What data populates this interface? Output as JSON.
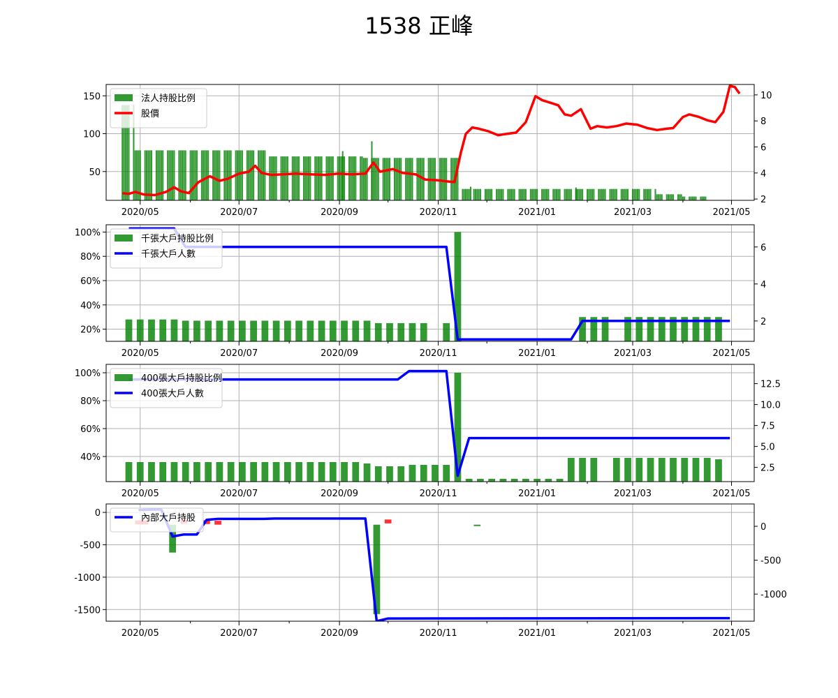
{
  "title": "1538 正峰",
  "colors": {
    "bar_green": "#008000",
    "bar_red": "#ff0000",
    "price_red": "#ff0000",
    "holders_blue": "#0000ff",
    "grid": "#b0b0b0"
  },
  "x_axis": {
    "start": "2020-04-10",
    "end": "2021-05-15",
    "ticks": [
      "2020-05-01",
      "2020-07-01",
      "2020-09-01",
      "2020-11-01",
      "2021-01-01",
      "2021-03-01",
      "2021-05-01"
    ],
    "tick_labels": [
      "2020/05",
      "2020/07",
      "2020/09",
      "2020/11",
      "2021/01",
      "2021/03",
      "2021/05"
    ]
  },
  "chart_data": [
    {
      "type": "bar",
      "id": "institutional",
      "legend": [
        "法人持股比例",
        "股價"
      ],
      "legend_position": "upper-left",
      "grid": true,
      "left_axis": {
        "ylim": [
          12,
          165
        ],
        "ticks": [
          50,
          100,
          150
        ],
        "tick_labels": [
          "50",
          "100",
          "150"
        ]
      },
      "right_axis": {
        "ylim": [
          1.9,
          10.8
        ],
        "ticks": [
          2,
          4,
          6,
          8,
          10
        ],
        "tick_labels": [
          "2",
          "4",
          "6",
          "8",
          "10"
        ]
      },
      "bar_series": {
        "name": "法人持股比例",
        "segments": [
          [
            "2020-04-20",
            "2020-04-27",
            138
          ],
          [
            "2020-04-28",
            "2020-06-30",
            78
          ],
          [
            "2020-07-01",
            "2020-07-17",
            78
          ],
          [
            "2020-07-18",
            "2020-08-24",
            70
          ],
          [
            "2020-08-25",
            "2020-09-15",
            70
          ],
          [
            "2020-09-16",
            "2020-10-31",
            68
          ],
          [
            "2020-11-01",
            "2020-11-13",
            68
          ],
          [
            "2020-11-14",
            "2020-11-25",
            27
          ],
          [
            "2020-11-26",
            "2021-02-15",
            27
          ],
          [
            "2021-02-16",
            "2021-03-15",
            27
          ],
          [
            "2021-03-16",
            "2021-03-31",
            20
          ],
          [
            "2021-04-01",
            "2021-04-15",
            17
          ]
        ],
        "spikes": [
          [
            "2020-09-03",
            77
          ],
          [
            "2020-09-21",
            90
          ],
          [
            "2020-11-21",
            30
          ],
          [
            "2021-01-25",
            29
          ]
        ]
      },
      "line_series": {
        "name": "股價",
        "points": [
          [
            "2020-04-20",
            2.45
          ],
          [
            "2020-04-24",
            2.4
          ],
          [
            "2020-04-28",
            2.55
          ],
          [
            "2020-05-03",
            2.35
          ],
          [
            "2020-05-10",
            2.3
          ],
          [
            "2020-05-17",
            2.55
          ],
          [
            "2020-05-22",
            2.9
          ],
          [
            "2020-05-26",
            2.6
          ],
          [
            "2020-05-31",
            2.45
          ],
          [
            "2020-06-06",
            3.3
          ],
          [
            "2020-06-13",
            3.75
          ],
          [
            "2020-06-19",
            3.4
          ],
          [
            "2020-06-24",
            3.55
          ],
          [
            "2020-07-01",
            3.95
          ],
          [
            "2020-07-07",
            4.1
          ],
          [
            "2020-07-11",
            4.55
          ],
          [
            "2020-07-15",
            4.0
          ],
          [
            "2020-07-21",
            3.85
          ],
          [
            "2020-07-28",
            3.9
          ],
          [
            "2020-08-05",
            3.95
          ],
          [
            "2020-08-14",
            3.9
          ],
          [
            "2020-08-23",
            3.85
          ],
          [
            "2020-08-31",
            3.95
          ],
          [
            "2020-09-09",
            3.9
          ],
          [
            "2020-09-17",
            3.95
          ],
          [
            "2020-09-22",
            4.8
          ],
          [
            "2020-09-26",
            4.1
          ],
          [
            "2020-10-04",
            4.3
          ],
          [
            "2020-10-10",
            4.0
          ],
          [
            "2020-10-18",
            3.9
          ],
          [
            "2020-10-24",
            3.5
          ],
          [
            "2020-10-31",
            3.45
          ],
          [
            "2020-11-07",
            3.35
          ],
          [
            "2020-11-11",
            3.3
          ],
          [
            "2020-11-15",
            5.6
          ],
          [
            "2020-11-18",
            7.0
          ],
          [
            "2020-11-22",
            7.5
          ],
          [
            "2020-11-26",
            7.4
          ],
          [
            "2020-12-02",
            7.2
          ],
          [
            "2020-12-08",
            6.9
          ],
          [
            "2020-12-13",
            7.0
          ],
          [
            "2020-12-19",
            7.1
          ],
          [
            "2020-12-25",
            7.9
          ],
          [
            "2020-12-31",
            9.9
          ],
          [
            "2021-01-04",
            9.6
          ],
          [
            "2021-01-09",
            9.4
          ],
          [
            "2021-01-14",
            9.2
          ],
          [
            "2021-01-18",
            8.5
          ],
          [
            "2021-01-22",
            8.4
          ],
          [
            "2021-01-28",
            8.9
          ],
          [
            "2021-02-03",
            7.4
          ],
          [
            "2021-02-07",
            7.6
          ],
          [
            "2021-02-13",
            7.5
          ],
          [
            "2021-02-19",
            7.6
          ],
          [
            "2021-02-25",
            7.8
          ],
          [
            "2021-03-04",
            7.7
          ],
          [
            "2021-03-10",
            7.45
          ],
          [
            "2021-03-16",
            7.3
          ],
          [
            "2021-03-22",
            7.4
          ],
          [
            "2021-03-26",
            7.45
          ],
          [
            "2021-04-01",
            8.3
          ],
          [
            "2021-04-05",
            8.5
          ],
          [
            "2021-04-11",
            8.3
          ],
          [
            "2021-04-16",
            8.05
          ],
          [
            "2021-04-21",
            7.9
          ],
          [
            "2021-04-26",
            8.7
          ],
          [
            "2021-04-30",
            10.7
          ],
          [
            "2021-05-03",
            10.6
          ],
          [
            "2021-05-06",
            10.1
          ]
        ]
      }
    },
    {
      "type": "bar",
      "id": "thousand-lot",
      "legend": [
        "千張大戶持股比例",
        "千張大戶人數"
      ],
      "legend_position": "upper-left",
      "grid": true,
      "left_axis": {
        "ylim": [
          10,
          106
        ],
        "ticks": [
          20,
          40,
          60,
          80,
          100
        ],
        "tick_labels": [
          "20%",
          "40%",
          "60%",
          "80%",
          "100%"
        ]
      },
      "right_axis": {
        "ylim": [
          0.9,
          7.2
        ],
        "ticks": [
          2,
          4,
          6
        ],
        "tick_labels": [
          "2",
          "4",
          "6"
        ]
      },
      "bar_series": {
        "name": "千張大戶持股比例",
        "weekly": [
          [
            "2020-04-24",
            28
          ],
          [
            "2020-05-01",
            28
          ],
          [
            "2020-05-08",
            28
          ],
          [
            "2020-05-15",
            28
          ],
          [
            "2020-05-22",
            28
          ],
          [
            "2020-05-29",
            27
          ],
          [
            "2020-06-05",
            27
          ],
          [
            "2020-06-12",
            27
          ],
          [
            "2020-06-19",
            27
          ],
          [
            "2020-06-26",
            27
          ],
          [
            "2020-07-03",
            27
          ],
          [
            "2020-07-10",
            27
          ],
          [
            "2020-07-17",
            27
          ],
          [
            "2020-07-24",
            27
          ],
          [
            "2020-07-31",
            27
          ],
          [
            "2020-08-07",
            27
          ],
          [
            "2020-08-14",
            27
          ],
          [
            "2020-08-21",
            27
          ],
          [
            "2020-08-28",
            27
          ],
          [
            "2020-09-04",
            27
          ],
          [
            "2020-09-11",
            27
          ],
          [
            "2020-09-18",
            27
          ],
          [
            "2020-09-25",
            25
          ],
          [
            "2020-10-02",
            25
          ],
          [
            "2020-10-09",
            25
          ],
          [
            "2020-10-16",
            25
          ],
          [
            "2020-10-23",
            25
          ],
          [
            "2020-11-06",
            25
          ],
          [
            "2020-11-13",
            100
          ],
          [
            "2021-01-29",
            30
          ],
          [
            "2021-02-05",
            30
          ],
          [
            "2021-02-12",
            30
          ],
          [
            "2021-02-26",
            30
          ],
          [
            "2021-03-05",
            30
          ],
          [
            "2021-03-12",
            30
          ],
          [
            "2021-03-19",
            30
          ],
          [
            "2021-03-26",
            30
          ],
          [
            "2021-04-02",
            30
          ],
          [
            "2021-04-09",
            30
          ],
          [
            "2021-04-16",
            30
          ],
          [
            "2021-04-23",
            30
          ]
        ]
      },
      "line_series": {
        "name": "千張大戶人數",
        "points": [
          [
            "2020-04-24",
            7
          ],
          [
            "2020-05-22",
            7
          ],
          [
            "2020-05-29",
            6
          ],
          [
            "2020-11-06",
            6
          ],
          [
            "2020-11-13",
            1
          ],
          [
            "2021-01-22",
            1
          ],
          [
            "2021-01-29",
            2
          ],
          [
            "2021-04-30",
            2
          ]
        ]
      }
    },
    {
      "type": "bar",
      "id": "four-hundred-lot",
      "legend": [
        "400張大戶持股比例",
        "400張大戶人數"
      ],
      "legend_position": "upper-left",
      "grid": true,
      "left_axis": {
        "ylim": [
          22,
          106
        ],
        "ticks": [
          40,
          60,
          80,
          100
        ],
        "tick_labels": [
          "40%",
          "60%",
          "80%",
          "100%"
        ]
      },
      "right_axis": {
        "ylim": [
          0.8,
          14.8
        ],
        "ticks": [
          2.5,
          5,
          7.5,
          10,
          12.5
        ],
        "tick_labels": [
          "2.5",
          "5.0",
          "7.5",
          "10.0",
          "12.5"
        ]
      },
      "bar_series": {
        "name": "400張大戶持股比例",
        "weekly": [
          [
            "2020-04-24",
            36
          ],
          [
            "2020-05-01",
            36
          ],
          [
            "2020-05-08",
            36
          ],
          [
            "2020-05-15",
            36
          ],
          [
            "2020-05-22",
            36
          ],
          [
            "2020-05-29",
            36
          ],
          [
            "2020-06-05",
            36
          ],
          [
            "2020-06-12",
            36
          ],
          [
            "2020-06-19",
            36
          ],
          [
            "2020-06-26",
            36
          ],
          [
            "2020-07-03",
            36
          ],
          [
            "2020-07-10",
            36
          ],
          [
            "2020-07-17",
            36
          ],
          [
            "2020-07-24",
            36
          ],
          [
            "2020-07-31",
            36
          ],
          [
            "2020-08-07",
            36
          ],
          [
            "2020-08-14",
            36
          ],
          [
            "2020-08-21",
            36
          ],
          [
            "2020-08-28",
            36
          ],
          [
            "2020-09-04",
            36
          ],
          [
            "2020-09-11",
            36
          ],
          [
            "2020-09-18",
            35
          ],
          [
            "2020-09-25",
            33
          ],
          [
            "2020-10-02",
            33
          ],
          [
            "2020-10-09",
            33
          ],
          [
            "2020-10-16",
            34
          ],
          [
            "2020-10-23",
            34
          ],
          [
            "2020-10-30",
            34
          ],
          [
            "2020-11-06",
            34
          ],
          [
            "2020-11-13",
            100
          ],
          [
            "2020-11-20",
            24
          ],
          [
            "2020-11-27",
            24
          ],
          [
            "2020-12-04",
            24
          ],
          [
            "2020-12-11",
            24
          ],
          [
            "2020-12-18",
            24
          ],
          [
            "2020-12-25",
            24
          ],
          [
            "2021-01-01",
            24
          ],
          [
            "2021-01-08",
            24
          ],
          [
            "2021-01-15",
            24
          ],
          [
            "2021-01-22",
            39
          ],
          [
            "2021-01-29",
            39
          ],
          [
            "2021-02-05",
            39
          ],
          [
            "2021-02-19",
            39
          ],
          [
            "2021-02-26",
            39
          ],
          [
            "2021-03-05",
            39
          ],
          [
            "2021-03-12",
            39
          ],
          [
            "2021-03-19",
            39
          ],
          [
            "2021-03-26",
            39
          ],
          [
            "2021-04-02",
            39
          ],
          [
            "2021-04-09",
            39
          ],
          [
            "2021-04-16",
            39
          ],
          [
            "2021-04-23",
            38
          ]
        ]
      },
      "line_series": {
        "name": "400張大戶人數",
        "points": [
          [
            "2020-04-24",
            13
          ],
          [
            "2020-10-07",
            13
          ],
          [
            "2020-10-14",
            14
          ],
          [
            "2020-11-06",
            14
          ],
          [
            "2020-11-13",
            1.5
          ],
          [
            "2020-11-20",
            6
          ],
          [
            "2021-04-30",
            6
          ]
        ]
      }
    },
    {
      "type": "bar",
      "id": "insider",
      "legend": [
        "內部大戶持股"
      ],
      "legend_position": "upper-left",
      "grid": true,
      "left_axis": {
        "ylim": [
          -1680,
          130
        ],
        "ticks": [
          0,
          -500,
          -1000,
          -1500
        ],
        "tick_labels": [
          "0",
          "-500",
          "-1000",
          "-1500"
        ]
      },
      "right_axis": {
        "ylim": [
          -1400,
          330
        ],
        "ticks": [
          0,
          -500,
          -1000
        ],
        "tick_labels": [
          "0",
          "-500",
          "-1000"
        ]
      },
      "bar_series": {
        "name": "內部大戶持股",
        "bars": [
          [
            "2020-05-21",
            -620,
            "green"
          ],
          [
            "2020-05-28",
            -170,
            "red"
          ],
          [
            "2020-06-11",
            -180,
            "red"
          ],
          [
            "2020-06-18",
            -190,
            "red"
          ],
          [
            "2020-09-24",
            -1570,
            "green"
          ],
          [
            "2020-10-01",
            -170,
            "red"
          ],
          [
            "2020-11-25",
            -190,
            "green"
          ],
          [
            "2020-04-30",
            -185,
            "red"
          ],
          [
            "2020-05-04",
            -185,
            "red"
          ]
        ]
      },
      "line_series": {
        "name": "內部大戶持股",
        "points": [
          [
            "2020-04-30",
            240
          ],
          [
            "2020-05-14",
            250
          ],
          [
            "2020-05-21",
            -150
          ],
          [
            "2020-05-28",
            -120
          ],
          [
            "2020-06-05",
            -120
          ],
          [
            "2020-06-11",
            95
          ],
          [
            "2020-06-18",
            110
          ],
          [
            "2020-07-16",
            110
          ],
          [
            "2020-07-23",
            115
          ],
          [
            "2020-09-17",
            115
          ],
          [
            "2020-09-24",
            -1400
          ],
          [
            "2020-10-01",
            -1360
          ],
          [
            "2021-04-30",
            -1355
          ]
        ]
      }
    }
  ]
}
